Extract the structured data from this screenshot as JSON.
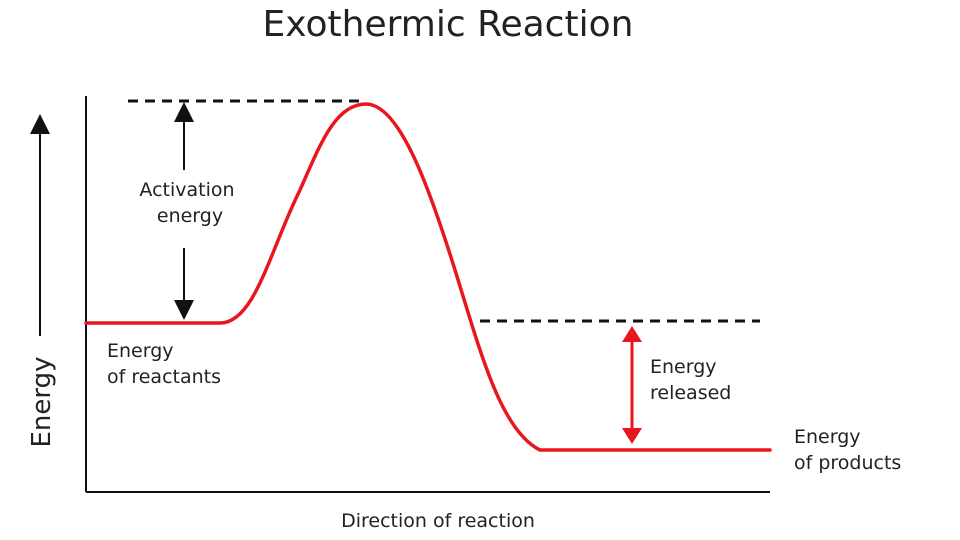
{
  "diagram": {
    "title": "Exothermic Reaction",
    "x_axis_label": "Direction of reaction",
    "y_axis_label": "Energy",
    "activation_label": [
      "Activation",
      "energy"
    ],
    "reactants_label": [
      "Energy",
      "of reactants"
    ],
    "released_label": [
      "Energy",
      "released"
    ],
    "products_label": [
      "Energy",
      "of products"
    ],
    "curve_color": "#e8161d",
    "arrow_black": "#111111",
    "arrow_red": "#e8161d",
    "guide_style": "dashed"
  }
}
